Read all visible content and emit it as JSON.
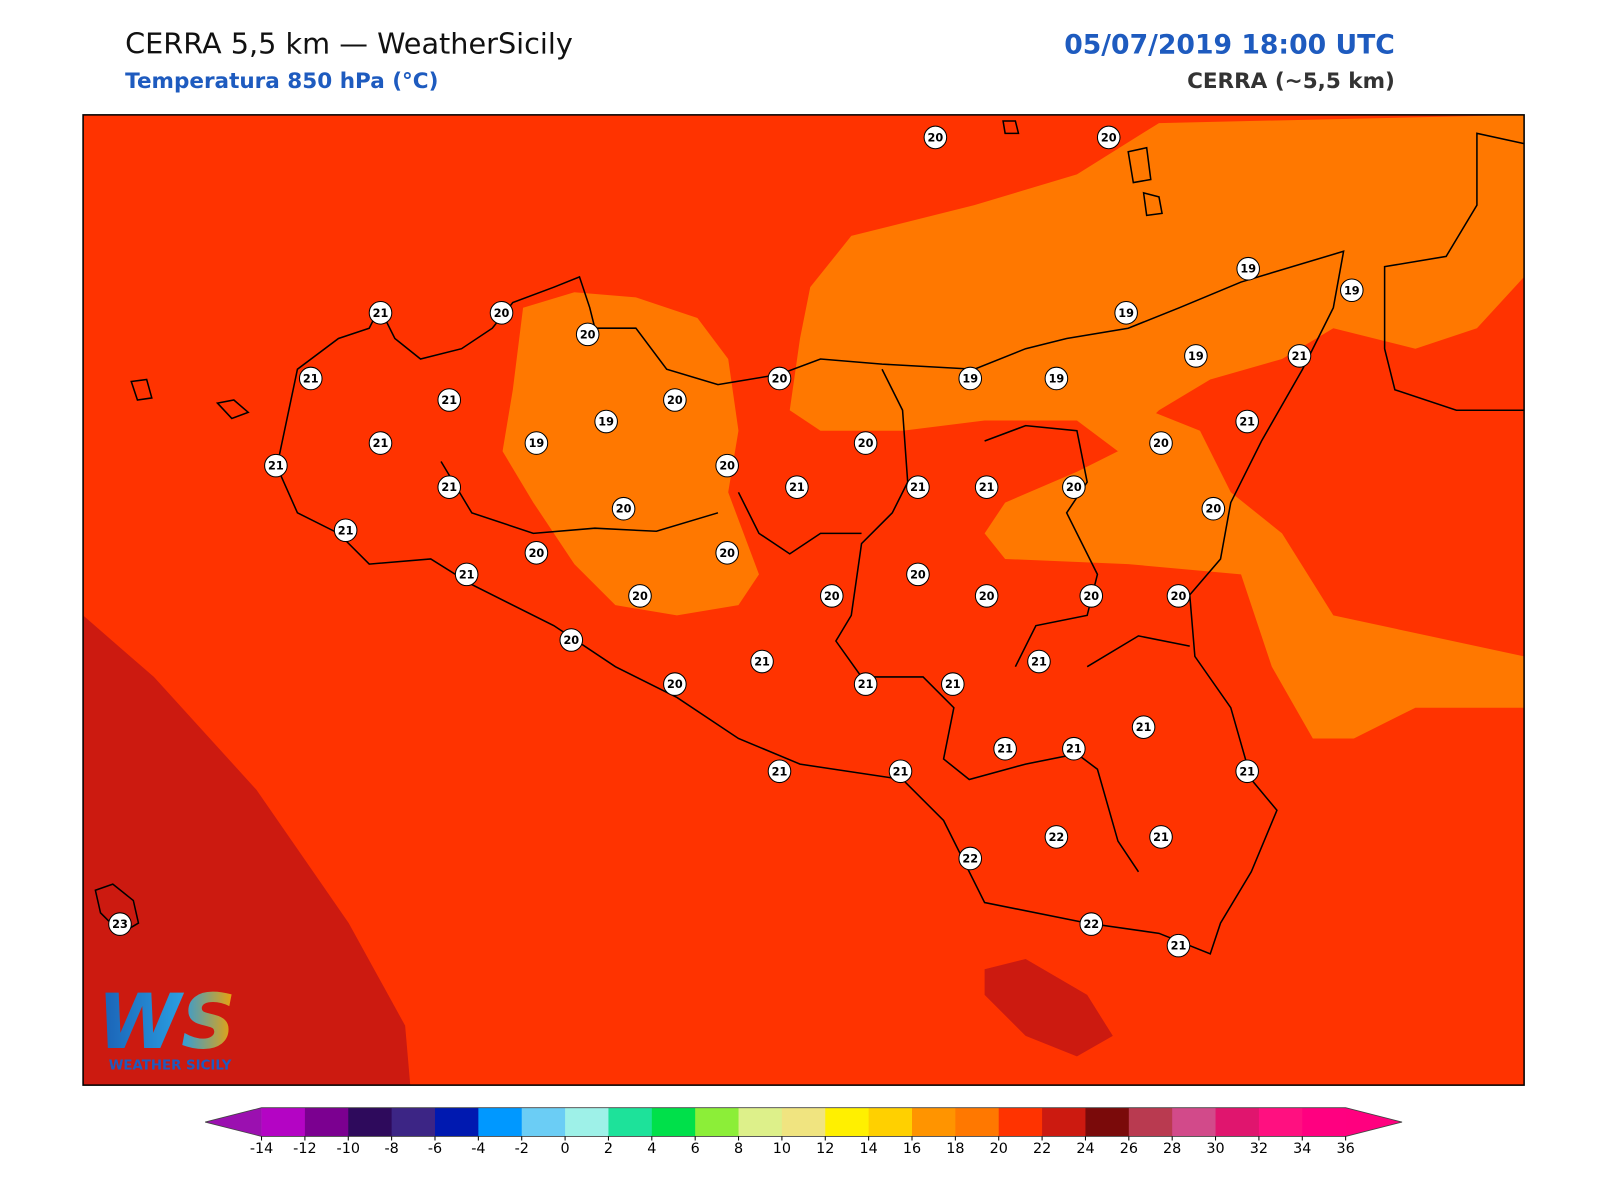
{
  "header": {
    "title": "CERRA 5,5 km — WeatherSicily",
    "subtitle": "Temperatura 850 hPa (°C)",
    "datetime": "05/07/2019 18:00 UTC",
    "model": "CERRA (~5,5 km)"
  },
  "stations": [
    20,
    20,
    19,
    19,
    21,
    20,
    20,
    19,
    19,
    21,
    21,
    20,
    19,
    19,
    21,
    20,
    19,
    21,
    21,
    19,
    20,
    20,
    21,
    20,
    21,
    21,
    21,
    21,
    20,
    20,
    20,
    21,
    20,
    20,
    21,
    20,
    20,
    20,
    20,
    20,
    20,
    20,
    21,
    21,
    20,
    21,
    21,
    21,
    21,
    21,
    21,
    21,
    21,
    22,
    21,
    22,
    22,
    21,
    23
  ],
  "logo": {
    "mark": "WS",
    "text": "WEATHER SICILY"
  },
  "colorbar": {
    "ticks": [
      -14,
      -12,
      -10,
      -8,
      -6,
      -4,
      -2,
      0,
      2,
      4,
      6,
      8,
      10,
      12,
      14,
      16,
      18,
      20,
      22,
      24,
      26,
      28,
      30,
      32,
      34,
      36
    ],
    "colors": [
      "#b404c4",
      "#7b0090",
      "#2e0a5c",
      "#3c2585",
      "#0019b0",
      "#0098ff",
      "#6bcdf5",
      "#9ef1e8",
      "#1de29a",
      "#00e04a",
      "#8cee38",
      "#ddf08a",
      "#f0e480",
      "#fff000",
      "#ffd000",
      "#ff9400",
      "#ff7800",
      "#ff3300",
      "#cc1a10",
      "#7a0a0a",
      "#b93a50",
      "#d24a8a",
      "#e0156e",
      "#ff1080",
      "#ff0080"
    ],
    "under_color": "#9b10b0",
    "over_color": "#ff007f"
  }
}
